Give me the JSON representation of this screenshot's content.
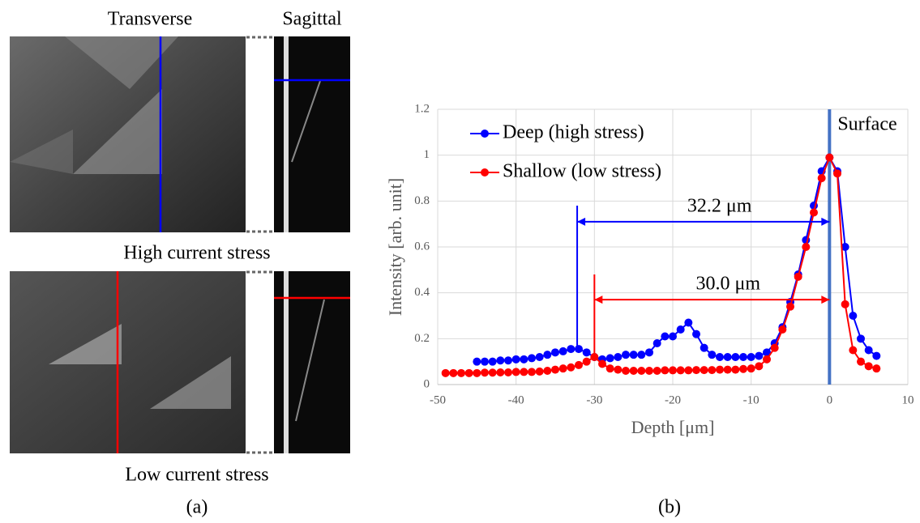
{
  "panel_a": {
    "label": "(a)",
    "transverse_title": "Transverse",
    "sagittal_title": "Sagittal",
    "high_caption": "High current stress",
    "low_caption": "Low current stress"
  },
  "chart_data": {
    "type": "line",
    "panel_label": "(b)",
    "x_label": "Depth [μm]",
    "y_label": "Intensity [arb. unit]",
    "xlim": [
      -50,
      10
    ],
    "xticks": [
      -50,
      -40,
      -30,
      -20,
      -10,
      0,
      10
    ],
    "ylim": [
      0,
      1.2
    ],
    "yticks": [
      0,
      0.2,
      0.4,
      0.6,
      0.8,
      1,
      1.2
    ],
    "grid": true,
    "legend": "top-left",
    "series": [
      {
        "name": "Deep (high stress)",
        "color": "#0000ff",
        "x": [
          -45,
          -44,
          -43,
          -42,
          -41,
          -40,
          -39,
          -38,
          -37,
          -36,
          -35,
          -34,
          -33,
          -32,
          -31,
          -30,
          -29,
          -28,
          -27,
          -26,
          -25,
          -24,
          -23,
          -22,
          -21,
          -20,
          -19,
          -18,
          -17,
          -16,
          -15,
          -14,
          -13,
          -12,
          -11,
          -10,
          -9,
          -8,
          -7,
          -6,
          -5,
          -4,
          -3,
          -2,
          -1,
          0,
          1,
          2,
          3,
          4,
          5,
          6
        ],
        "values": [
          0.1,
          0.1,
          0.1,
          0.105,
          0.105,
          0.11,
          0.11,
          0.115,
          0.12,
          0.13,
          0.14,
          0.145,
          0.155,
          0.155,
          0.14,
          0.12,
          0.11,
          0.115,
          0.12,
          0.13,
          0.13,
          0.13,
          0.14,
          0.18,
          0.21,
          0.21,
          0.24,
          0.27,
          0.22,
          0.16,
          0.13,
          0.12,
          0.12,
          0.12,
          0.12,
          0.12,
          0.125,
          0.14,
          0.18,
          0.25,
          0.36,
          0.48,
          0.63,
          0.78,
          0.93,
          0.99,
          0.93,
          0.6,
          0.3,
          0.2,
          0.15,
          0.125
        ]
      },
      {
        "name": "Shallow (low stress)",
        "color": "#ff0000",
        "x": [
          -49,
          -48,
          -47,
          -46,
          -45,
          -44,
          -43,
          -42,
          -41,
          -40,
          -39,
          -38,
          -37,
          -36,
          -35,
          -34,
          -33,
          -32,
          -31,
          -30,
          -29,
          -28,
          -27,
          -26,
          -25,
          -24,
          -23,
          -22,
          -21,
          -20,
          -19,
          -18,
          -17,
          -16,
          -15,
          -14,
          -13,
          -12,
          -11,
          -10,
          -9,
          -8,
          -7,
          -6,
          -5,
          -4,
          -3,
          -2,
          -1,
          0,
          1,
          2,
          3,
          4,
          5,
          6
        ],
        "values": [
          0.05,
          0.05,
          0.05,
          0.05,
          0.05,
          0.052,
          0.052,
          0.053,
          0.053,
          0.055,
          0.055,
          0.055,
          0.057,
          0.06,
          0.065,
          0.07,
          0.075,
          0.085,
          0.1,
          0.12,
          0.09,
          0.07,
          0.065,
          0.06,
          0.06,
          0.06,
          0.06,
          0.06,
          0.062,
          0.062,
          0.062,
          0.062,
          0.063,
          0.063,
          0.063,
          0.065,
          0.065,
          0.065,
          0.068,
          0.07,
          0.08,
          0.11,
          0.16,
          0.24,
          0.34,
          0.47,
          0.6,
          0.75,
          0.9,
          0.99,
          0.92,
          0.35,
          0.15,
          0.1,
          0.08,
          0.07
        ]
      }
    ],
    "annotations": [
      {
        "text": "32.2 μm",
        "x1": -32.2,
        "x2": 0,
        "y": 0.71,
        "ytop": 0.78,
        "ybottom": 0.155,
        "color": "#0000ff"
      },
      {
        "text": "30.0 μm",
        "x1": -30,
        "x2": 0,
        "y": 0.37,
        "ytop": 0.48,
        "ybottom": 0.12,
        "color": "#ff0000"
      }
    ],
    "surface_line": {
      "x": 0,
      "label": "Surface",
      "color": "#4472c4"
    }
  }
}
